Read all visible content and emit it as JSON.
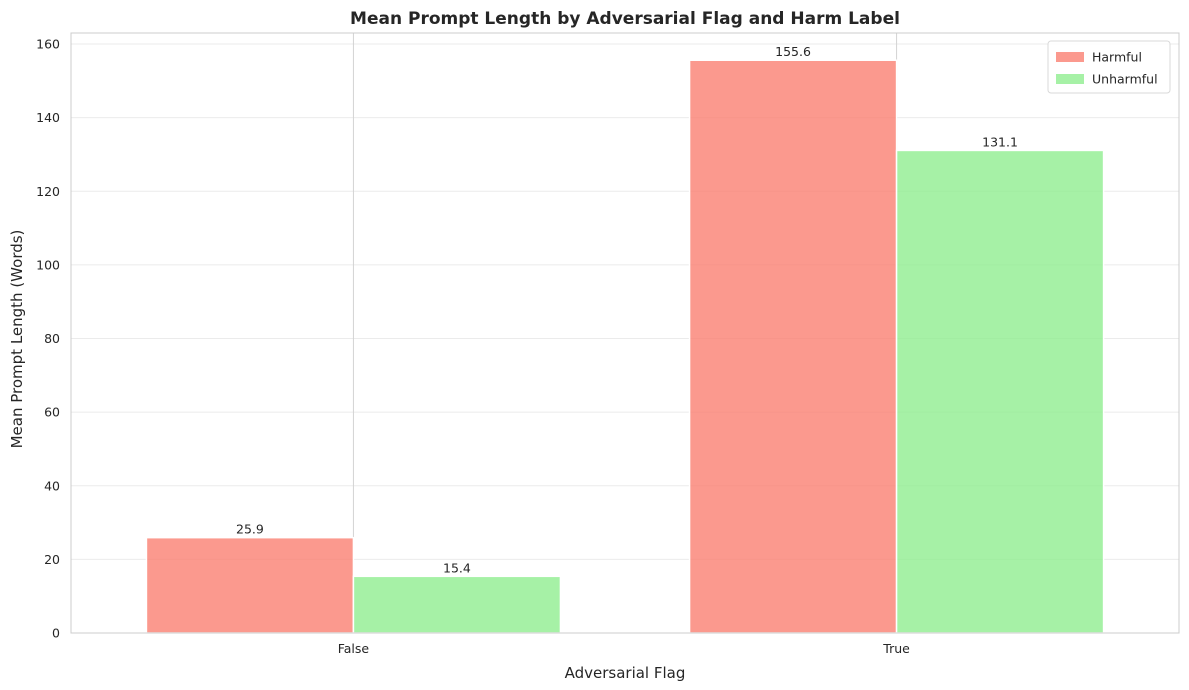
{
  "chart_data": {
    "type": "bar",
    "title": "Mean Prompt Length by Adversarial Flag and Harm Label",
    "xlabel": "Adversarial Flag",
    "ylabel": "Mean Prompt Length (Words)",
    "categories": [
      "False",
      "True"
    ],
    "series": [
      {
        "name": "Harmful",
        "values": [
          25.9,
          155.6
        ],
        "color": "#fa8072"
      },
      {
        "name": "Unharmful",
        "values": [
          15.4,
          131.1
        ],
        "color": "#90ee90"
      }
    ],
    "data_labels": [
      [
        "25.9",
        "155.6"
      ],
      [
        "15.4",
        "131.1"
      ]
    ],
    "ylim": [
      0,
      163
    ],
    "yticks": [
      0,
      20,
      40,
      60,
      80,
      100,
      120,
      140,
      160
    ],
    "grid": true,
    "legend": "top-right",
    "style": {
      "axis_color": "#cccccc",
      "grid_color": "#ebebeb",
      "bar_edge_color": "#ffffff",
      "bar_opacity": 0.8
    }
  }
}
